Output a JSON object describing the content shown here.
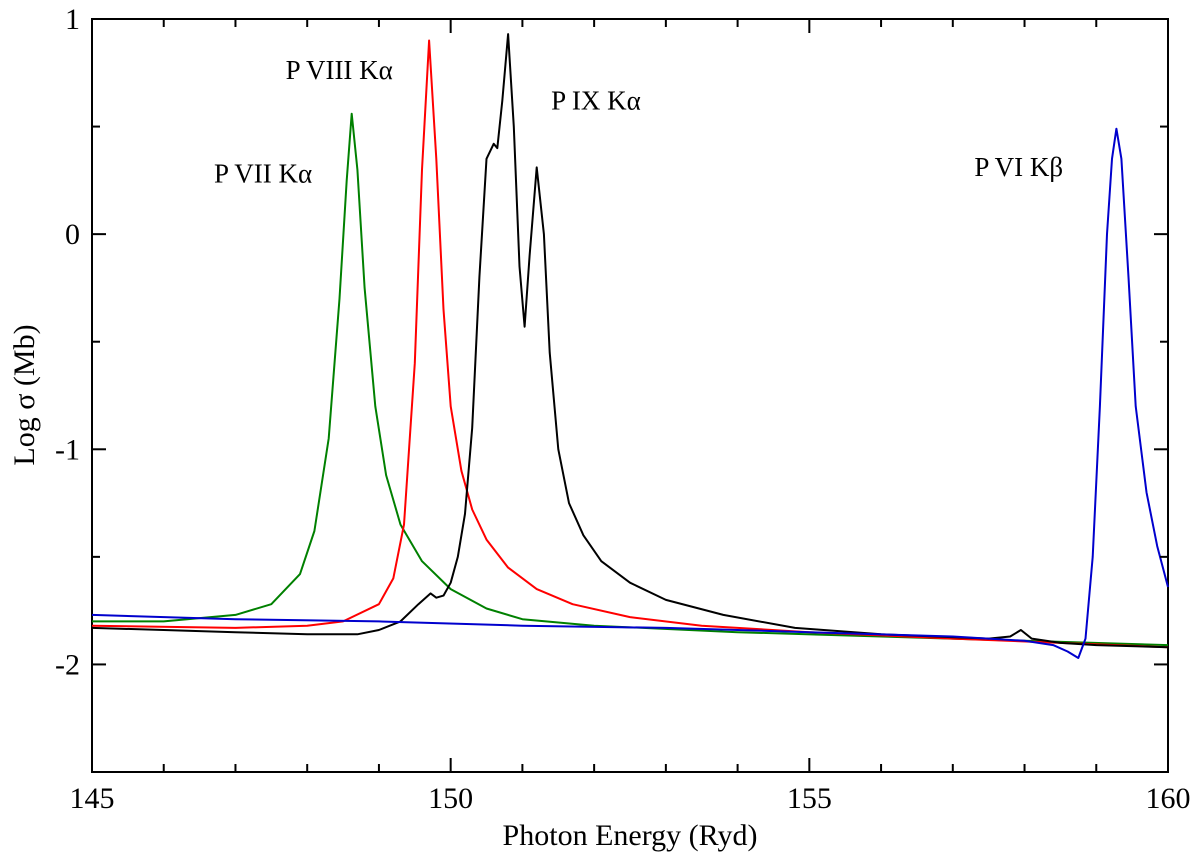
{
  "chart_data": {
    "type": "line",
    "title": "",
    "xlabel": "Photon Energy (Ryd)",
    "ylabel": "Log σ (Mb)",
    "xlim": [
      145,
      160
    ],
    "ylim": [
      -2.5,
      1.0
    ],
    "xticks": [
      145,
      150,
      155,
      160
    ],
    "xtick_labels": [
      "145",
      "150",
      "155",
      "160"
    ],
    "yticks": [
      -2,
      -1,
      0,
      1
    ],
    "ytick_labels": [
      "-2",
      "-1",
      "0",
      "1"
    ],
    "grid": false,
    "legend": "none",
    "annotations": [
      {
        "text": "P VII Kα",
        "x": 146.7,
        "y": 0.24
      },
      {
        "text": "P VIII Kα",
        "x": 147.7,
        "y": 0.72
      },
      {
        "text": "P IX Kα",
        "x": 151.4,
        "y": 0.58
      },
      {
        "text": "P VI Kβ",
        "x": 157.3,
        "y": 0.27
      }
    ],
    "series": [
      {
        "name": "P VII",
        "color": "#008000",
        "x": [
          145.0,
          146.0,
          147.0,
          147.5,
          147.9,
          148.1,
          148.3,
          148.45,
          148.55,
          148.62,
          148.7,
          148.8,
          148.95,
          149.1,
          149.3,
          149.6,
          150.0,
          150.5,
          151.0,
          152.0,
          154.0,
          156.0,
          158.0,
          160.0
        ],
        "y": [
          -1.8,
          -1.8,
          -1.77,
          -1.72,
          -1.58,
          -1.38,
          -0.95,
          -0.3,
          0.25,
          0.56,
          0.3,
          -0.25,
          -0.8,
          -1.12,
          -1.35,
          -1.52,
          -1.65,
          -1.74,
          -1.79,
          -1.82,
          -1.85,
          -1.87,
          -1.89,
          -1.91
        ]
      },
      {
        "name": "P VIII",
        "color": "#ff0000",
        "x": [
          145.0,
          147.0,
          148.0,
          148.5,
          149.0,
          149.2,
          149.35,
          149.5,
          149.6,
          149.7,
          149.8,
          149.9,
          150.0,
          150.15,
          150.3,
          150.5,
          150.8,
          151.2,
          151.7,
          152.5,
          153.5,
          155.0,
          157.0,
          158.5,
          160.0
        ],
        "y": [
          -1.82,
          -1.83,
          -1.82,
          -1.8,
          -1.72,
          -1.6,
          -1.35,
          -0.6,
          0.3,
          0.9,
          0.35,
          -0.35,
          -0.8,
          -1.1,
          -1.28,
          -1.42,
          -1.55,
          -1.65,
          -1.72,
          -1.78,
          -1.82,
          -1.85,
          -1.88,
          -1.9,
          -1.92
        ]
      },
      {
        "name": "P IX",
        "color": "#000000",
        "x": [
          145.0,
          146.0,
          147.0,
          148.0,
          148.7,
          149.0,
          149.3,
          149.55,
          149.72,
          149.8,
          149.9,
          150.0,
          150.1,
          150.2,
          150.3,
          150.4,
          150.5,
          150.6,
          150.65,
          150.72,
          150.8,
          150.88,
          150.96,
          151.03,
          151.1,
          151.2,
          151.3,
          151.38,
          151.5,
          151.65,
          151.85,
          152.1,
          152.5,
          153.0,
          153.8,
          154.8,
          156.0,
          157.5,
          157.8,
          157.95,
          158.1,
          158.5,
          159.0,
          160.0
        ],
        "y": [
          -1.83,
          -1.84,
          -1.85,
          -1.86,
          -1.86,
          -1.84,
          -1.8,
          -1.72,
          -1.67,
          -1.69,
          -1.68,
          -1.62,
          -1.5,
          -1.3,
          -0.9,
          -0.2,
          0.35,
          0.42,
          0.4,
          0.62,
          0.93,
          0.5,
          -0.15,
          -0.43,
          -0.1,
          0.31,
          0.0,
          -0.55,
          -1.0,
          -1.25,
          -1.4,
          -1.52,
          -1.62,
          -1.7,
          -1.77,
          -1.83,
          -1.86,
          -1.88,
          -1.87,
          -1.84,
          -1.88,
          -1.9,
          -1.91,
          -1.92
        ]
      },
      {
        "name": "P VI",
        "color": "#0000cd",
        "x": [
          145.0,
          147.0,
          149.0,
          151.0,
          153.0,
          155.0,
          157.0,
          158.0,
          158.4,
          158.6,
          158.75,
          158.85,
          158.95,
          159.05,
          159.15,
          159.22,
          159.28,
          159.35,
          159.45,
          159.55,
          159.7,
          159.85,
          160.0
        ],
        "y": [
          -1.77,
          -1.79,
          -1.8,
          -1.82,
          -1.83,
          -1.85,
          -1.87,
          -1.89,
          -1.91,
          -1.94,
          -1.97,
          -1.88,
          -1.5,
          -0.8,
          0.0,
          0.35,
          0.49,
          0.35,
          -0.2,
          -0.8,
          -1.2,
          -1.45,
          -1.64
        ]
      }
    ]
  }
}
